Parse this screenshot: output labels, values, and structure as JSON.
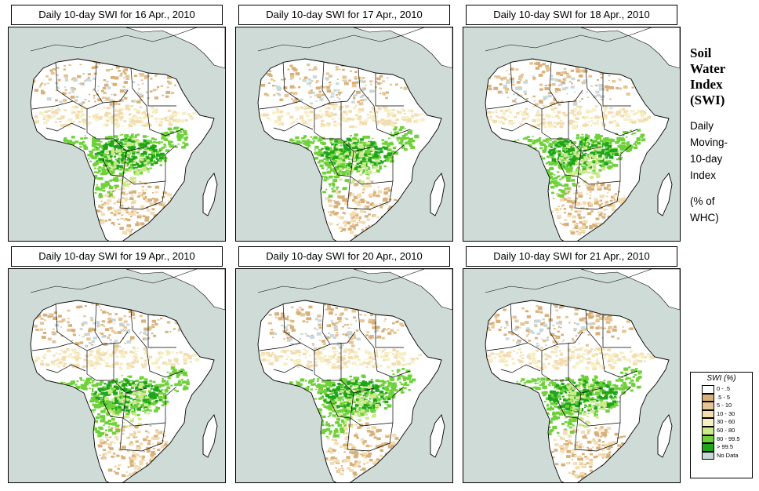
{
  "panels": [
    {
      "title": "Daily 10-day SWI for  16 Apr., 2010",
      "seed": 16
    },
    {
      "title": "Daily 10-day SWI for  17 Apr., 2010",
      "seed": 17
    },
    {
      "title": "Daily 10-day SWI for  18 Apr., 2010",
      "seed": 18
    },
    {
      "title": "Daily 10-day SWI for  19 Apr., 2010",
      "seed": 19
    },
    {
      "title": "Daily 10-day SWI for  20 Apr., 2010",
      "seed": 20
    },
    {
      "title": "Daily 10-day SWI for  21 Apr., 2010",
      "seed": 21
    }
  ],
  "side": {
    "title_lines": [
      "Soil",
      "Water",
      "Index",
      "(SWI)"
    ],
    "subtitle_lines": [
      "Daily",
      "Moving-",
      "10-day",
      "Index"
    ],
    "unit_lines": [
      "(% of",
      " WHC)"
    ]
  },
  "legend": {
    "title": "SWI (%)",
    "entries": [
      {
        "label": "0 - .5",
        "color": "#ffffff"
      },
      {
        "label": ".5 - 5",
        "color": "#d9b07a"
      },
      {
        "label": "5 - 10",
        "color": "#e6c594"
      },
      {
        "label": "10 - 30",
        "color": "#f2dcb0"
      },
      {
        "label": "30 - 60",
        "color": "#f6efc4"
      },
      {
        "label": "60 - 80",
        "color": "#cdea8a"
      },
      {
        "label": "80 - 99.5",
        "color": "#6fd13a"
      },
      {
        "label": "> 99.5",
        "color": "#1fa51a"
      },
      {
        "label": "No Data",
        "color": "#c9d8d8"
      }
    ]
  },
  "colors": {
    "sea": "#cfdbd6",
    "land_dry": "#ffffff",
    "border": "#000000"
  }
}
